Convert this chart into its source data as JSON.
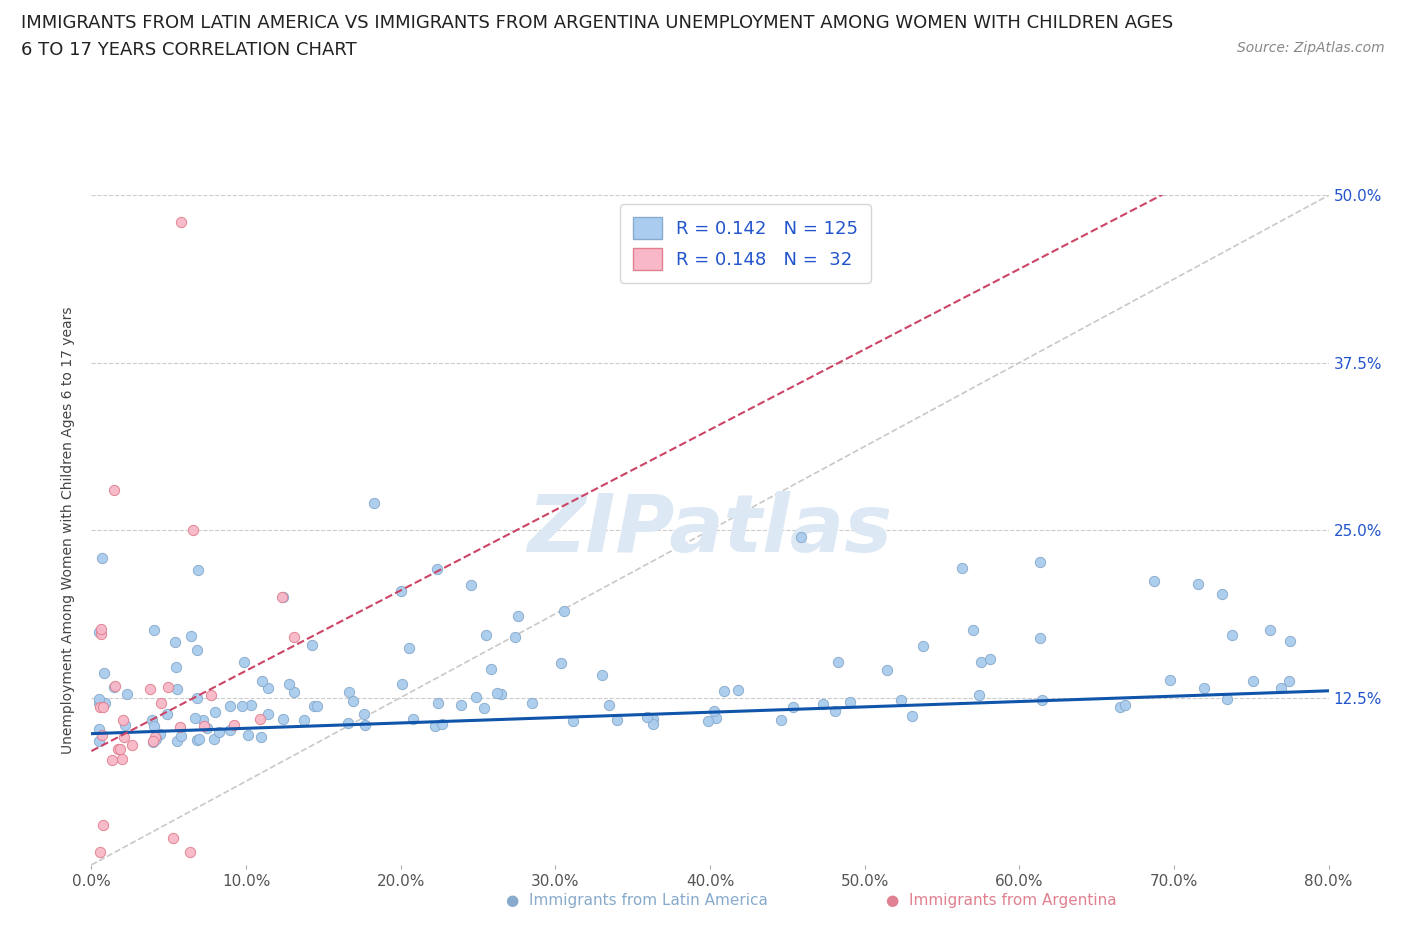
{
  "title_line1": "IMMIGRANTS FROM LATIN AMERICA VS IMMIGRANTS FROM ARGENTINA UNEMPLOYMENT AMONG WOMEN WITH CHILDREN AGES",
  "title_line2": "6 TO 17 YEARS CORRELATION CHART",
  "source": "Source: ZipAtlas.com",
  "ylabel": "Unemployment Among Women with Children Ages 6 to 17 years",
  "xlim": [
    0.0,
    0.8
  ],
  "ylim": [
    0.0,
    0.5
  ],
  "xticks": [
    0.0,
    0.1,
    0.2,
    0.3,
    0.4,
    0.5,
    0.6,
    0.7,
    0.8
  ],
  "xticklabels": [
    "0.0%",
    "10.0%",
    "20.0%",
    "30.0%",
    "40.0%",
    "50.0%",
    "60.0%",
    "70.0%",
    "80.0%"
  ],
  "yticks": [
    0.0,
    0.125,
    0.25,
    0.375,
    0.5
  ],
  "yticklabels": [
    "",
    "12.5%",
    "25.0%",
    "37.5%",
    "50.0%"
  ],
  "blue_color": "#aaccee",
  "blue_edge": "#88aacc",
  "pink_color": "#f8b8c8",
  "pink_edge": "#e08090",
  "trend_blue_color": "#1155aa",
  "trend_pink_color": "#cc4466",
  "diag_color": "#bbbbbb",
  "watermark_color": "#dde8f5",
  "legend_R1": "0.142",
  "legend_N1": "125",
  "legend_R2": "0.148",
  "legend_N2": "32",
  "legend_text_color": "#2255cc",
  "label_blue": "Immigrants from Latin America",
  "label_pink": "Immigrants from Argentina",
  "title_fontsize": 13,
  "tick_fontsize": 11,
  "source_fontsize": 10
}
